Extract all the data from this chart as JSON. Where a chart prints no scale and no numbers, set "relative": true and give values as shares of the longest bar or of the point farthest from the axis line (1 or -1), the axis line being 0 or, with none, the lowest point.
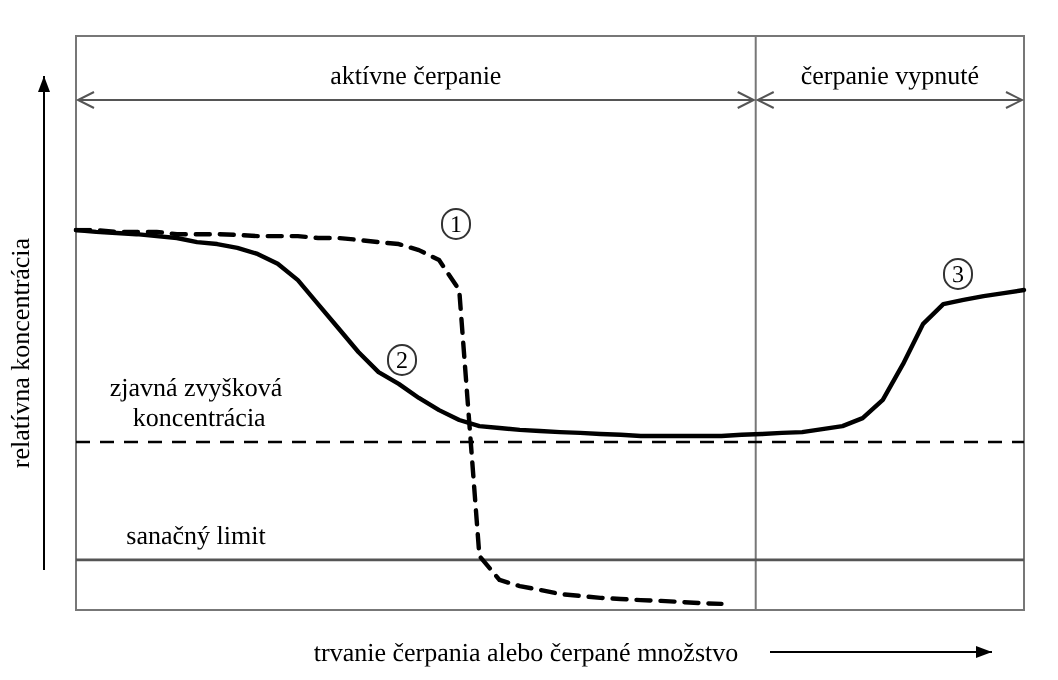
{
  "chart_data": {
    "type": "line",
    "relative": true,
    "xlabel": "trvanie čerpania alebo čerpané množstvo",
    "ylabel": "relatívna koncentrácia",
    "categories": [
      null,
      null,
      null,
      null,
      null,
      null,
      null,
      null,
      null,
      null,
      null,
      null,
      null,
      null,
      null,
      null,
      null,
      null,
      null,
      null,
      null,
      null,
      null,
      null,
      null,
      null,
      null,
      null,
      null,
      null,
      null,
      null,
      null,
      null,
      null,
      null,
      null,
      null,
      null,
      null,
      null,
      null,
      null,
      null,
      null,
      null,
      null,
      null
    ],
    "series": [
      {
        "color": "#000000",
        "line_style": "dashed",
        "values": [
          1.0,
          1.0,
          0.995,
          0.995,
          0.995,
          0.989,
          0.989,
          0.989,
          0.987,
          0.984,
          0.984,
          0.984,
          0.979,
          0.979,
          0.974,
          0.968,
          0.963,
          0.947,
          0.921,
          0.842,
          0.142,
          0.079,
          0.063,
          0.053,
          0.042,
          0.037,
          0.032,
          0.029,
          0.026,
          0.024,
          0.021,
          0.018,
          0.016,
          null,
          null,
          null,
          null,
          null,
          null,
          null,
          null,
          null,
          null,
          null,
          null,
          null,
          null,
          null
        ]
      },
      {
        "color": "#000000",
        "line_style": "solid",
        "values": [
          1.0,
          0.995,
          0.992,
          0.989,
          0.984,
          0.979,
          0.968,
          0.963,
          0.953,
          0.937,
          0.911,
          0.868,
          0.805,
          0.742,
          0.679,
          0.626,
          0.595,
          0.558,
          0.526,
          0.5,
          0.484,
          0.479,
          0.474,
          0.471,
          0.468,
          0.466,
          0.463,
          0.461,
          0.458,
          0.458,
          0.458,
          0.458,
          0.458,
          0.461,
          0.463,
          0.466,
          0.468,
          0.476,
          0.484,
          0.505,
          0.553,
          0.647,
          0.753,
          0.805,
          0.816,
          0.826,
          0.834,
          0.842
        ]
      }
    ],
    "ref_lines": [
      {
        "axis": "y",
        "value": 0.442,
        "label": "zjavná zvyšková koncentrácia",
        "line_style": "dashed"
      },
      {
        "axis": "y",
        "value": 0.132,
        "label": "sanačný limit",
        "line_style": "solid",
        "color": "#555555"
      }
    ],
    "annotations": [
      "aktívne čerpanie",
      "čerpanie vypnuté",
      "1",
      "2",
      "3"
    ]
  }
}
